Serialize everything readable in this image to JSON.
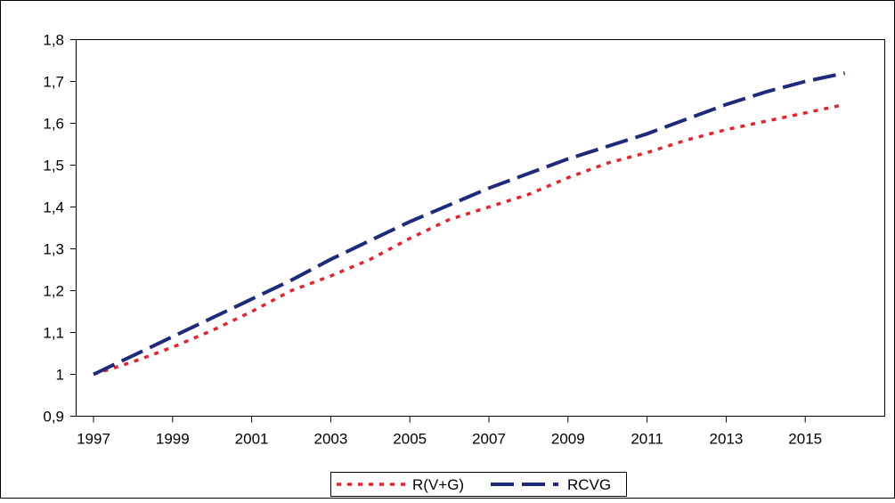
{
  "chart_data": {
    "type": "line",
    "title": "",
    "xlabel": "",
    "ylabel": "",
    "x": [
      1997,
      1998,
      1999,
      2000,
      2001,
      2002,
      2003,
      2004,
      2005,
      2006,
      2007,
      2008,
      2009,
      2010,
      2011,
      2012,
      2013,
      2014,
      2015,
      2016
    ],
    "xticks": [
      "1997",
      "1999",
      "2001",
      "2003",
      "2005",
      "2007",
      "2009",
      "2011",
      "2013",
      "2015"
    ],
    "yticks": [
      "0,9",
      "1",
      "1,1",
      "1,2",
      "1,3",
      "1,4",
      "1,5",
      "1,6",
      "1,7",
      "1,8"
    ],
    "ylim": [
      0.9,
      1.8
    ],
    "grid": false,
    "legend_position": "bottom-center",
    "series": [
      {
        "name": "R(V+G)",
        "color": "#e8212a",
        "style": "dotted",
        "values": [
          1.0,
          1.03,
          1.065,
          1.105,
          1.15,
          1.2,
          1.235,
          1.275,
          1.325,
          1.37,
          1.4,
          1.43,
          1.47,
          1.505,
          1.53,
          1.56,
          1.585,
          1.605,
          1.625,
          1.645
        ]
      },
      {
        "name": "RCVG",
        "color": "#1f2a7a",
        "style": "dashed",
        "values": [
          1.0,
          1.045,
          1.09,
          1.135,
          1.18,
          1.225,
          1.275,
          1.32,
          1.365,
          1.405,
          1.445,
          1.48,
          1.515,
          1.545,
          1.575,
          1.61,
          1.645,
          1.675,
          1.7,
          1.72
        ]
      }
    ]
  }
}
